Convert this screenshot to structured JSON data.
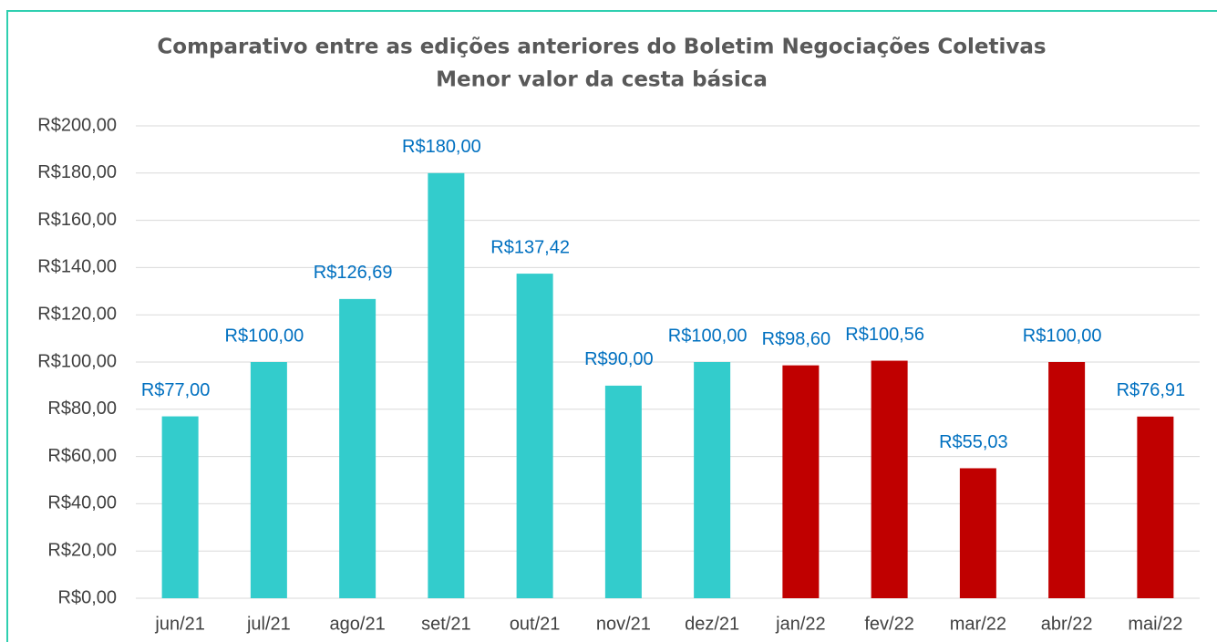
{
  "chart_data": {
    "type": "bar",
    "title": "Comparativo entre as edições anteriores do Boletim Negociações Coletivas",
    "subtitle": "Menor valor da cesta básica",
    "categories": [
      "jun/21",
      "jul/21",
      "ago/21",
      "set/21",
      "out/21",
      "nov/21",
      "dez/21",
      "jan/22",
      "fev/22",
      "mar/22",
      "abr/22",
      "mai/22"
    ],
    "values": [
      77,
      100,
      126.69,
      180,
      137.42,
      90,
      100,
      98.6,
      100.56,
      55.03,
      100,
      76.91
    ],
    "value_labels": [
      "R$77,00",
      "R$100,00",
      "R$126,69",
      "R$180,00",
      "R$137,42",
      "R$90,00",
      "R$100,00",
      "R$98,60",
      "R$100,56",
      "R$55,03",
      "R$100,00",
      "R$76,91"
    ],
    "colors": [
      "#33cccc",
      "#33cccc",
      "#33cccc",
      "#33cccc",
      "#33cccc",
      "#33cccc",
      "#33cccc",
      "#c00000",
      "#c00000",
      "#c00000",
      "#c00000",
      "#c00000"
    ],
    "ylim": [
      0,
      200
    ],
    "yticks": [
      {
        "value": 0,
        "label": "R$0,00"
      },
      {
        "value": 20,
        "label": "R$20,00"
      },
      {
        "value": 40,
        "label": "R$40,00"
      },
      {
        "value": 60,
        "label": "R$60,00"
      },
      {
        "value": 80,
        "label": "R$80,00"
      },
      {
        "value": 100,
        "label": "R$100,00"
      },
      {
        "value": 120,
        "label": "R$120,00"
      },
      {
        "value": 140,
        "label": "R$140,00"
      },
      {
        "value": 160,
        "label": "R$160,00"
      },
      {
        "value": 180,
        "label": "R$180,00"
      },
      {
        "value": 200,
        "label": "R$200,00"
      }
    ],
    "grid": true
  }
}
